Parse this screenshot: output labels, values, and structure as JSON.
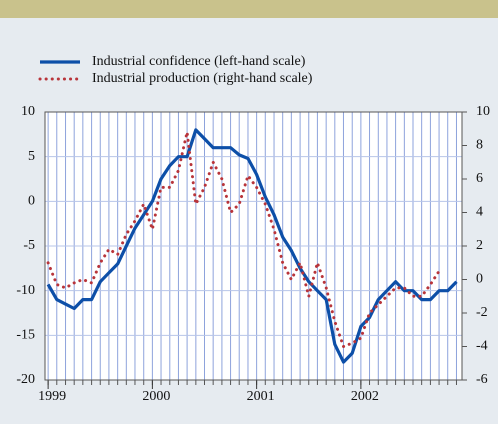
{
  "chart_data": {
    "type": "line",
    "x": [
      1999,
      1999.083,
      1999.167,
      1999.25,
      1999.333,
      1999.417,
      1999.5,
      1999.583,
      1999.667,
      1999.75,
      1999.833,
      1999.917,
      2000,
      2000.083,
      2000.167,
      2000.25,
      2000.333,
      2000.417,
      2000.5,
      2000.583,
      2000.667,
      2000.75,
      2000.833,
      2000.917,
      2001,
      2001.083,
      2001.167,
      2001.25,
      2001.333,
      2001.417,
      2001.5,
      2001.583,
      2001.667,
      2001.75,
      2001.833,
      2001.917,
      2002,
      2002.083,
      2002.167,
      2002.25,
      2002.333,
      2002.417,
      2002.5,
      2002.583,
      2002.667,
      2002.75,
      2002.833,
      2002.917
    ],
    "xlim": [
      1998.97,
      2002.97
    ],
    "xticks": [
      1999,
      2000,
      2001,
      2002
    ],
    "ylim": [
      -20,
      10
    ],
    "yticks": [
      -20,
      -15,
      -10,
      -5,
      0,
      5,
      10
    ],
    "y2lim": [
      -6,
      10
    ],
    "y2ticks": [
      -6,
      -4,
      -2,
      0,
      2,
      4,
      6,
      8,
      10
    ],
    "grid": true,
    "legend": "top-left",
    "series": [
      {
        "name": "Industrial confidence (left-hand scale)",
        "color": "#0d4fa8",
        "values": [
          -9.3,
          -11,
          -11.5,
          -12,
          -11,
          -11,
          -9,
          -8,
          -7,
          -5,
          -3,
          -1.5,
          0,
          2.5,
          4,
          5,
          5,
          8,
          7,
          6,
          6,
          6,
          5.2,
          4.8,
          3,
          0.5,
          -1.5,
          -4,
          -5.5,
          -7.5,
          -9,
          -10,
          -11,
          -16,
          -18,
          -17,
          -14,
          -13,
          -11,
          -10,
          -9,
          -10,
          -10,
          -11,
          -11,
          -10,
          -10,
          -9
        ]
      },
      {
        "name": "Industrial production (right-hand scale)",
        "color": "#b8343a",
        "axis": "y2",
        "values": [
          1,
          -0.3,
          -0.5,
          -0.2,
          0,
          -0.2,
          1,
          1.8,
          1.5,
          2.7,
          3.5,
          4.5,
          3,
          5.5,
          5.5,
          6.5,
          8.8,
          4.5,
          5.5,
          7,
          6,
          4,
          4.5,
          6.2,
          5.5,
          4.5,
          3,
          1,
          0,
          1,
          -1,
          1,
          -0.5,
          -2.5,
          -4,
          -3.8,
          -3.5,
          -2,
          -1.5,
          -1,
          -0.5,
          -0.5,
          -1,
          -1,
          -0.3,
          0.5,
          null,
          null
        ]
      }
    ]
  }
}
